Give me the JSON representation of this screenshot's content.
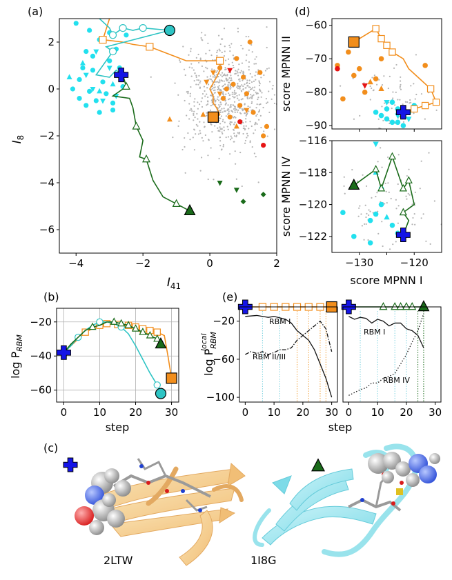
{
  "colors": {
    "orange": "#f28e1c",
    "cyan": "#2ec4c4",
    "cyan_light": "#22e0ee",
    "green": "#1a6b1a",
    "blue": "#1414e6",
    "red": "#e61414",
    "gray": "#b4b4b4",
    "vline_cyan": "#7fd3e0",
    "vline_orange": "#f2a23c",
    "vline_green": "#1a6b1a"
  },
  "panels": {
    "a": {
      "label": "(a)"
    },
    "b": {
      "label": "(b)"
    },
    "c": {
      "label": "(c)",
      "left_name": "2LTW",
      "right_name": "1I8G"
    },
    "d": {
      "label": "(d)"
    },
    "e": {
      "label": "(e)"
    }
  },
  "chart_data": [
    {
      "id": "a",
      "type": "scatter",
      "xlabel": "I41",
      "ylabel": "I8",
      "xlim": [
        -4.5,
        2.0
      ],
      "ylim": [
        -7.0,
        3.0
      ],
      "xticks": [
        -4,
        -2,
        0,
        2
      ],
      "yticks": [
        -6,
        -4,
        -2,
        0,
        2
      ],
      "gray_cloud": {
        "center": [
          0.5,
          -0.3
        ],
        "count": 700
      },
      "cyan_points": [
        [
          -4.0,
          2.8
        ],
        [
          -3.6,
          2.5
        ],
        [
          -3.3,
          2.1
        ],
        [
          -3.7,
          1.6
        ],
        [
          -3.0,
          1.2
        ],
        [
          -3.8,
          0.9
        ],
        [
          -3.5,
          0.8
        ],
        [
          -3.9,
          0.4
        ],
        [
          -3.2,
          0.3
        ],
        [
          -3.6,
          -0.1
        ],
        [
          -3.1,
          -0.2
        ],
        [
          -3.9,
          -0.4
        ],
        [
          -3.4,
          -0.5
        ],
        [
          -2.9,
          -0.6
        ],
        [
          -3.3,
          -1.0
        ],
        [
          -2.6,
          0.1
        ],
        [
          -2.7,
          0.9
        ],
        [
          -3.0,
          2.4
        ],
        [
          -2.5,
          2.3
        ],
        [
          -4.1,
          0.0
        ],
        [
          -3.5,
          1.4
        ],
        [
          -2.8,
          1.7
        ],
        [
          -2.9,
          -0.9
        ],
        [
          -3.7,
          -0.7
        ]
      ],
      "cyan_triangles_down": [
        [
          -3.4,
          1.6
        ],
        [
          -3.0,
          0.9
        ],
        [
          -3.7,
          0.6
        ],
        [
          -3.2,
          -0.5
        ],
        [
          -2.8,
          -0.3
        ],
        [
          -3.5,
          0.0
        ]
      ],
      "cyan_triangles_up": [
        [
          -4.2,
          0.5
        ],
        [
          -3.3,
          -0.1
        ],
        [
          -2.9,
          0.2
        ],
        [
          -3.8,
          1.1
        ]
      ],
      "orange_points": [
        [
          1.2,
          2.0
        ],
        [
          0.8,
          1.3
        ],
        [
          1.5,
          0.7
        ],
        [
          0.7,
          0.2
        ],
        [
          1.1,
          -0.2
        ],
        [
          0.4,
          -0.4
        ],
        [
          0.9,
          -0.7
        ],
        [
          1.3,
          -1.0
        ],
        [
          0.6,
          -1.2
        ],
        [
          1.7,
          -1.6
        ],
        [
          1.6,
          -2.0
        ],
        [
          0.3,
          0.9
        ],
        [
          0.5,
          0.0
        ],
        [
          1.0,
          0.5
        ]
      ],
      "orange_triangles_down": [
        [
          0.1,
          0.7
        ],
        [
          0.3,
          -0.2
        ],
        [
          -0.1,
          0.3
        ],
        [
          1.1,
          -0.9
        ]
      ],
      "orange_triangles_up": [
        [
          -1.2,
          -1.3
        ],
        [
          -0.2,
          -1.1
        ],
        [
          0.8,
          -1.6
        ]
      ],
      "red_points": [
        [
          1.6,
          -2.4
        ],
        [
          0.9,
          -1.4
        ]
      ],
      "red_triangles_down": [
        [
          0.6,
          0.8
        ]
      ],
      "green_triangles_down": [
        [
          0.3,
          -4.0
        ],
        [
          0.8,
          -4.3
        ]
      ],
      "green_diamonds": [
        [
          1.0,
          -4.8
        ],
        [
          1.6,
          -4.5
        ]
      ],
      "series": [
        {
          "name": "orange",
          "marker": "square",
          "x": [
            -3.0,
            -3.2,
            -2.6,
            -2.3,
            -1.8,
            -0.7,
            0.3,
            0.3,
            0.2,
            0.0,
            0.1,
            0.1,
            0.2,
            0.3,
            0.2
          ],
          "y": [
            3.0,
            2.1,
            2.0,
            1.9,
            1.8,
            1.2,
            1.2,
            0.8,
            0.5,
            0.0,
            -0.3,
            -0.6,
            -0.8,
            -1.1,
            -1.2
          ],
          "marked": [
            1,
            4,
            6
          ],
          "start": [
            0.1,
            -1.2
          ]
        },
        {
          "name": "cyan",
          "marker": "circle",
          "x": [
            -3.3,
            -3.0,
            -2.9,
            -2.6,
            -2.3,
            -2.0,
            -1.2,
            -3.1,
            -2.9,
            -3.4,
            -3.0,
            -2.8,
            -2.7
          ],
          "y": [
            3.0,
            2.6,
            2.3,
            2.6,
            2.5,
            2.6,
            2.5,
            1.8,
            1.6,
            0.6,
            0.5,
            0.8,
            0.7
          ],
          "marked": [
            2,
            3,
            5,
            8
          ],
          "start": [
            -1.2,
            2.5
          ]
        },
        {
          "name": "green",
          "marker": "triangle",
          "x": [
            -2.6,
            -2.5,
            -2.9,
            -2.4,
            -2.3,
            -2.2,
            -2.0,
            -2.1,
            -1.9,
            -1.7,
            -1.4,
            -1.0,
            -0.6
          ],
          "y": [
            0.6,
            0.1,
            -0.3,
            -0.4,
            -0.8,
            -1.6,
            -2.2,
            -2.9,
            -3.0,
            -3.9,
            -4.6,
            -4.9,
            -5.2
          ],
          "marked": [
            1,
            5,
            8,
            11
          ],
          "start": [
            -0.6,
            -5.2
          ]
        }
      ],
      "start_point": [
        -2.65,
        0.6
      ]
    },
    {
      "id": "b",
      "type": "line",
      "xlabel": "step",
      "ylabel": "log P",
      "ylabel_sub": "RBM",
      "xlim": [
        -2,
        32
      ],
      "ylim": [
        -67,
        -12
      ],
      "xticks": [
        0,
        10,
        20,
        30
      ],
      "yticks": [
        -60,
        -40,
        -20
      ],
      "grid": true,
      "series": [
        {
          "name": "orange",
          "marker": "square",
          "x": [
            0,
            2,
            4,
            6,
            8,
            10,
            12,
            14,
            16,
            18,
            20,
            22,
            24,
            26,
            28,
            29,
            30
          ],
          "y": [
            -38,
            -34,
            -30,
            -26,
            -24,
            -22,
            -21,
            -21,
            -22,
            -22,
            -23,
            -24,
            -25,
            -26,
            -28,
            -40,
            -53
          ],
          "marked": [
            6,
            10,
            12,
            15,
            18,
            20,
            22,
            24,
            26
          ]
        },
        {
          "name": "cyan",
          "marker": "circle",
          "x": [
            0,
            2,
            4,
            6,
            8,
            10,
            12,
            14,
            16,
            18,
            20,
            22,
            24,
            26,
            27
          ],
          "y": [
            -38,
            -34,
            -29,
            -25,
            -22,
            -20,
            -20,
            -21,
            -23,
            -27,
            -34,
            -42,
            -50,
            -57,
            -62
          ],
          "marked": [
            4,
            10,
            16,
            26
          ],
          "end": [
            27,
            -62
          ]
        },
        {
          "name": "green",
          "marker": "triangle",
          "x": [
            0,
            2,
            4,
            6,
            8,
            10,
            12,
            14,
            16,
            18,
            20,
            22,
            24,
            26,
            27
          ],
          "y": [
            -38,
            -33,
            -29,
            -25,
            -23,
            -22,
            -20,
            -20,
            -21,
            -22,
            -24,
            -26,
            -28,
            -30,
            -33
          ],
          "marked": [
            8,
            14,
            16,
            18,
            20,
            22,
            24,
            26
          ],
          "end": [
            27,
            -33
          ]
        }
      ],
      "start_point": [
        0,
        -38
      ]
    },
    {
      "id": "d_top",
      "type": "scatter",
      "ylabel": "score MPNN II",
      "xlim": [
        -135,
        -115
      ],
      "ylim": [
        -91,
        -58
      ],
      "yticks": [
        -90,
        -80,
        -70,
        -60
      ],
      "cyan_points": [
        [
          -124,
          -83
        ],
        [
          -123,
          -85
        ],
        [
          -122,
          -87
        ],
        [
          -125,
          -88
        ],
        [
          -121,
          -86
        ],
        [
          -124,
          -89
        ],
        [
          -126,
          -87
        ],
        [
          -123,
          -89
        ],
        [
          -120,
          -84
        ],
        [
          -127,
          -86
        ],
        [
          -122,
          -90
        ],
        [
          -125,
          -85
        ]
      ],
      "cyan_triangles_down": [
        [
          -123,
          -87
        ],
        [
          -121,
          -88
        ],
        [
          -125,
          -83
        ]
      ],
      "orange_points": [
        [
          -134,
          -72
        ],
        [
          -132,
          -68
        ],
        [
          -131,
          -75
        ],
        [
          -129,
          -80
        ],
        [
          -127,
          -76
        ],
        [
          -133,
          -82
        ],
        [
          -126,
          -70
        ],
        [
          -130,
          -73
        ],
        [
          -118,
          -72
        ]
      ],
      "orange_triangles_up": [
        [
          -128,
          -77
        ],
        [
          -126,
          -79
        ]
      ],
      "red_points": [
        [
          -134,
          -73
        ]
      ],
      "red_triangles_down": [
        [
          -129,
          -78
        ]
      ],
      "series": {
        "name": "orange",
        "marker": "square",
        "x": [
          -131,
          -127,
          -126,
          -125,
          -124,
          -122,
          -121,
          -119,
          -117,
          -116,
          -118,
          -120,
          -122
        ],
        "y": [
          -65,
          -61,
          -64,
          -66,
          -68,
          -70,
          -73,
          -76,
          -79,
          -83,
          -84,
          -85,
          -86
        ],
        "start": [
          -131,
          -65
        ]
      },
      "start_point": [
        -122,
        -86
      ]
    },
    {
      "id": "d_bottom",
      "type": "scatter",
      "xlabel": "score MPNN I",
      "ylabel": "score MPNN IV",
      "xlim": [
        -135,
        -115
      ],
      "ylim": [
        -123,
        -116
      ],
      "xticks": [
        -130,
        -125,
        -120
      ],
      "xtick_labels": [
        "−130",
        "",
        "−120"
      ],
      "yticks": [
        -122,
        -120,
        -118,
        -116
      ],
      "cyan_points": [
        [
          -133,
          -120.5
        ],
        [
          -128,
          -121
        ],
        [
          -126,
          -120
        ],
        [
          -124,
          -121.3
        ],
        [
          -123,
          -121.8
        ],
        [
          -126,
          -119
        ],
        [
          -131,
          -122
        ],
        [
          -128,
          -122.4
        ],
        [
          -127,
          -120.6
        ]
      ],
      "cyan_triangles_down": [
        [
          -127,
          -116.2
        ]
      ],
      "cyan_triangles_up": [
        [
          -127,
          -118
        ],
        [
          -125,
          -120.8
        ]
      ],
      "series": {
        "name": "green",
        "marker": "triangle",
        "x": [
          -131,
          -127,
          -126,
          -124,
          -123,
          -122,
          -121,
          -120,
          -122,
          -121,
          -122
        ],
        "y": [
          -118.8,
          -117.8,
          -119,
          -117,
          -118,
          -119,
          -118.5,
          -120,
          -120.5,
          -121,
          -121.9
        ],
        "start": [
          -131,
          -118.8
        ]
      },
      "start_point": [
        -122,
        -121.9
      ]
    },
    {
      "id": "e_left",
      "type": "line",
      "xlabel": "step",
      "ylabel": "log P",
      "ylabel_sup": "local",
      "ylabel_sub": "RBM",
      "xlim": [
        -2,
        32
      ],
      "ylim": [
        -105,
        -5
      ],
      "xticks": [
        0,
        10,
        20,
        30
      ],
      "yticks": [
        -100,
        -60,
        -20
      ],
      "annotations": [
        "RBM I",
        "RBM II/III"
      ],
      "series": [
        {
          "name": "RBM I",
          "style": "solid",
          "x": [
            0,
            4,
            8,
            10,
            14,
            16,
            18,
            20,
            22,
            24,
            26,
            28,
            30
          ],
          "y": [
            -15,
            -14,
            -16,
            -15,
            -18,
            -22,
            -30,
            -35,
            -40,
            -50,
            -65,
            -80,
            -100
          ]
        },
        {
          "name": "RBM II/III",
          "style": "dashdot",
          "x": [
            0,
            2,
            4,
            6,
            8,
            10,
            12,
            14,
            16,
            18,
            20,
            22,
            24,
            26,
            28,
            30
          ],
          "y": [
            -55,
            -52,
            -54,
            -52,
            -55,
            -53,
            -50,
            -50,
            -48,
            -40,
            -35,
            -30,
            -25,
            -20,
            -28,
            -52
          ]
        }
      ],
      "vlines_cyan": [
        6,
        12
      ],
      "vlines_orange": [
        18,
        22,
        26,
        28
      ],
      "top_markers": [
        6,
        10,
        14,
        18,
        22,
        26
      ],
      "start_point": [
        0,
        -5
      ],
      "end_point": [
        30,
        -5
      ]
    },
    {
      "id": "e_right",
      "type": "line",
      "xlabel": "step",
      "xlim": [
        -2,
        32
      ],
      "ylim": [
        -105,
        -5
      ],
      "xticks": [
        0,
        10,
        20,
        30
      ],
      "annotations": [
        "RBM I",
        "RBM IV"
      ],
      "series": [
        {
          "name": "RBM I",
          "style": "solid",
          "x": [
            0,
            2,
            4,
            6,
            8,
            10,
            12,
            14,
            16,
            18,
            20,
            22,
            24,
            26
          ],
          "y": [
            -15,
            -18,
            -16,
            -17,
            -22,
            -18,
            -20,
            -25,
            -22,
            -22,
            -28,
            -30,
            -35,
            -48
          ]
        },
        {
          "name": "RBM IV",
          "style": "dotted",
          "x": [
            0,
            2,
            4,
            6,
            8,
            10,
            12,
            14,
            16,
            18,
            20,
            22,
            24,
            26
          ],
          "y": [
            -98,
            -95,
            -92,
            -90,
            -85,
            -85,
            -80,
            -78,
            -75,
            -65,
            -55,
            -42,
            -30,
            -12
          ]
        }
      ],
      "vlines_cyan": [
        4,
        10,
        16,
        20
      ],
      "vlines_green": [
        24,
        26
      ],
      "top_markers": [
        12,
        16,
        18,
        20,
        22
      ],
      "start_point": [
        0,
        -5
      ],
      "end_point": [
        26,
        -5
      ]
    }
  ]
}
